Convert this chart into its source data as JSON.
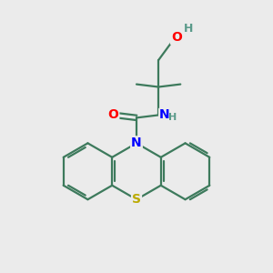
{
  "background_color": "#ebebeb",
  "atom_colors": {
    "C": "#3d7a5c",
    "N": "#0000ff",
    "O": "#ff0000",
    "S": "#bbaa00",
    "H": "#5a9a8a"
  },
  "bond_color": "#3d7a5c",
  "figsize": [
    3.0,
    3.0
  ],
  "dpi": 100
}
